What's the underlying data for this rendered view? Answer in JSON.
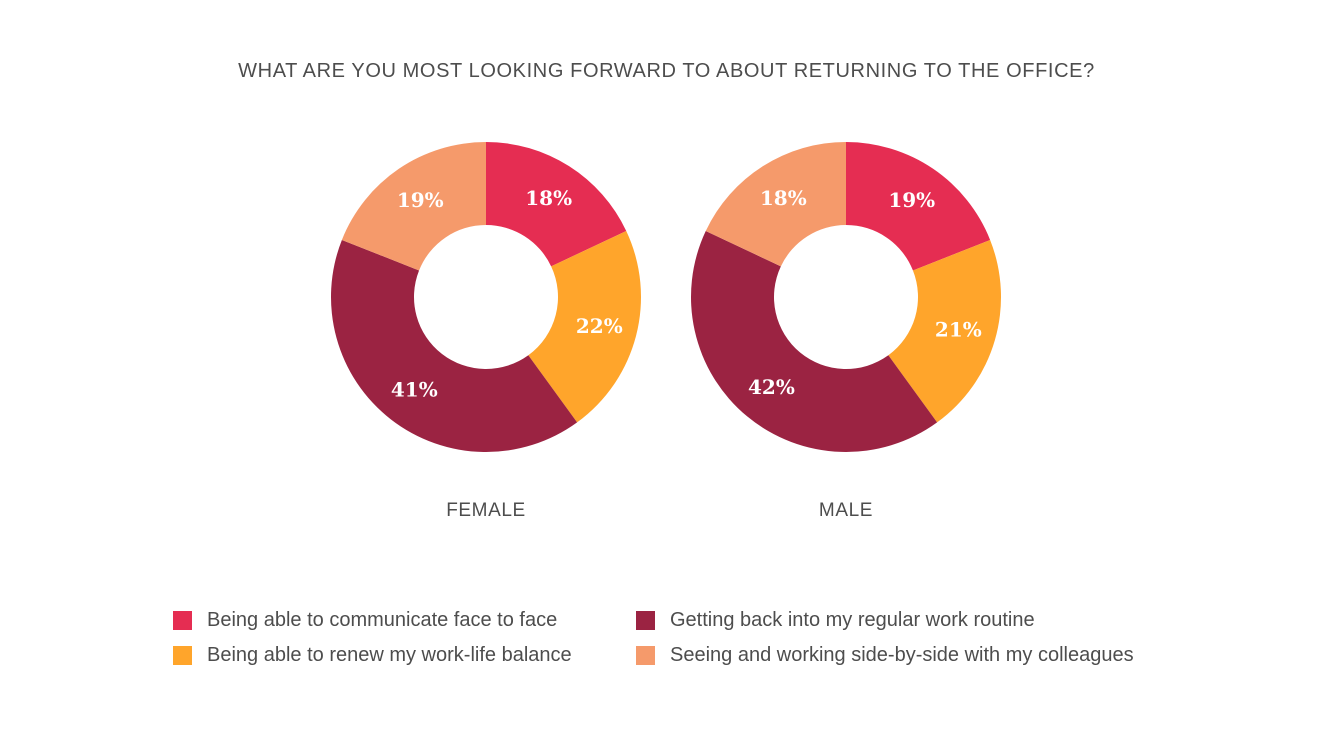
{
  "chart_data": {
    "type": "pie",
    "title": "WHAT ARE YOU MOST LOOKING FORWARD TO ABOUT RETURNING TO THE OFFICE?",
    "categories": [
      "Being able to communicate face to face",
      "Being able to renew my work-life balance",
      "Getting back into my regular work routine",
      "Seeing and working side-by-side with my colleagues"
    ],
    "colors": [
      "#e52d52",
      "#ffa52b",
      "#9b2342",
      "#f59a6b"
    ],
    "series": [
      {
        "name": "FEMALE",
        "values": [
          18,
          22,
          41,
          19
        ],
        "labels": [
          "18%",
          "22%",
          "41%",
          "19%"
        ]
      },
      {
        "name": "MALE",
        "values": [
          19,
          21,
          42,
          18
        ],
        "labels": [
          "19%",
          "21%",
          "42%",
          "18%"
        ]
      }
    ],
    "legend_position": "bottom",
    "legend_order": [
      0,
      2,
      1,
      3
    ]
  }
}
